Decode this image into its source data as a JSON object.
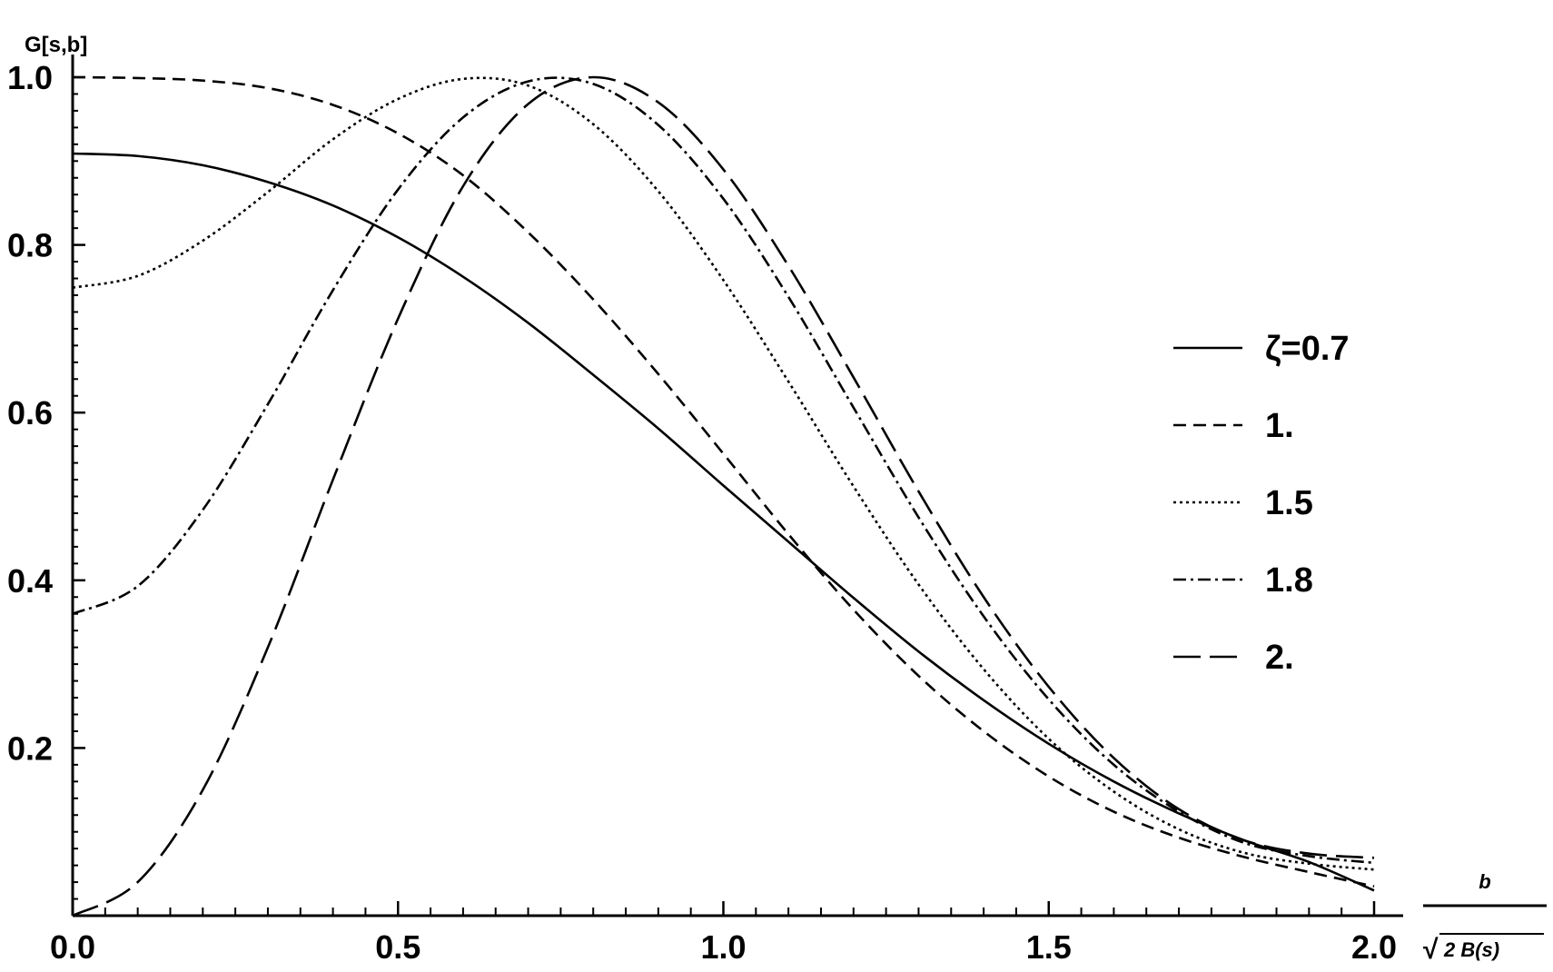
{
  "chart_data": {
    "type": "line",
    "ylabel": "G[s,b]",
    "xlabel": {
      "numerator": "b",
      "denominator_radical": "√",
      "denominator": "2 B(s)"
    },
    "xlim": [
      0,
      2
    ],
    "ylim": [
      0,
      1
    ],
    "x_ticks": [
      "0.0",
      "0.5",
      "1.0",
      "1.5",
      "2.0"
    ],
    "x_tick_values": [
      0,
      0.5,
      1.0,
      1.5,
      2.0
    ],
    "y_ticks": [
      "0.2",
      "0.4",
      "0.6",
      "0.8",
      "1.0"
    ],
    "y_tick_values": [
      0.2,
      0.4,
      0.6,
      0.8,
      1.0
    ],
    "legend_position": "right",
    "x": [
      0,
      0.1,
      0.2,
      0.3,
      0.4,
      0.5,
      0.6,
      0.7,
      0.8,
      0.9,
      1.0,
      1.1,
      1.2,
      1.3,
      1.4,
      1.5,
      1.6,
      1.7,
      1.8,
      1.9,
      2.0
    ],
    "series": [
      {
        "name": "ζ=0.7",
        "style": "solid",
        "values": [
          0.909,
          0.906,
          0.895,
          0.875,
          0.847,
          0.809,
          0.762,
          0.707,
          0.645,
          0.581,
          0.513,
          0.446,
          0.379,
          0.315,
          0.257,
          0.205,
          0.16,
          0.122,
          0.09,
          0.064,
          0.03
        ]
      },
      {
        "name": "1.",
        "style": "dashed",
        "values": [
          1.0,
          0.999,
          0.996,
          0.987,
          0.967,
          0.933,
          0.883,
          0.815,
          0.735,
          0.646,
          0.551,
          0.455,
          0.365,
          0.286,
          0.22,
          0.166,
          0.124,
          0.093,
          0.07,
          0.052,
          0.035
        ]
      },
      {
        "name": "1.5",
        "style": "dotted",
        "values": [
          0.749,
          0.763,
          0.805,
          0.863,
          0.926,
          0.974,
          0.998,
          0.99,
          0.944,
          0.864,
          0.758,
          0.637,
          0.512,
          0.395,
          0.294,
          0.211,
          0.148,
          0.103,
          0.075,
          0.062,
          0.055
        ]
      },
      {
        "name": "1.8",
        "style": "dashdot",
        "values": [
          0.36,
          0.393,
          0.484,
          0.61,
          0.746,
          0.866,
          0.952,
          0.995,
          0.992,
          0.943,
          0.855,
          0.738,
          0.606,
          0.475,
          0.357,
          0.258,
          0.18,
          0.124,
          0.087,
          0.071,
          0.063
        ]
      },
      {
        "name": "2.",
        "style": "longdash",
        "values": [
          0.0,
          0.04,
          0.15,
          0.32,
          0.52,
          0.712,
          0.87,
          0.968,
          1.0,
          0.97,
          0.89,
          0.775,
          0.642,
          0.506,
          0.38,
          0.273,
          0.188,
          0.127,
          0.09,
          0.074,
          0.069
        ]
      }
    ]
  }
}
